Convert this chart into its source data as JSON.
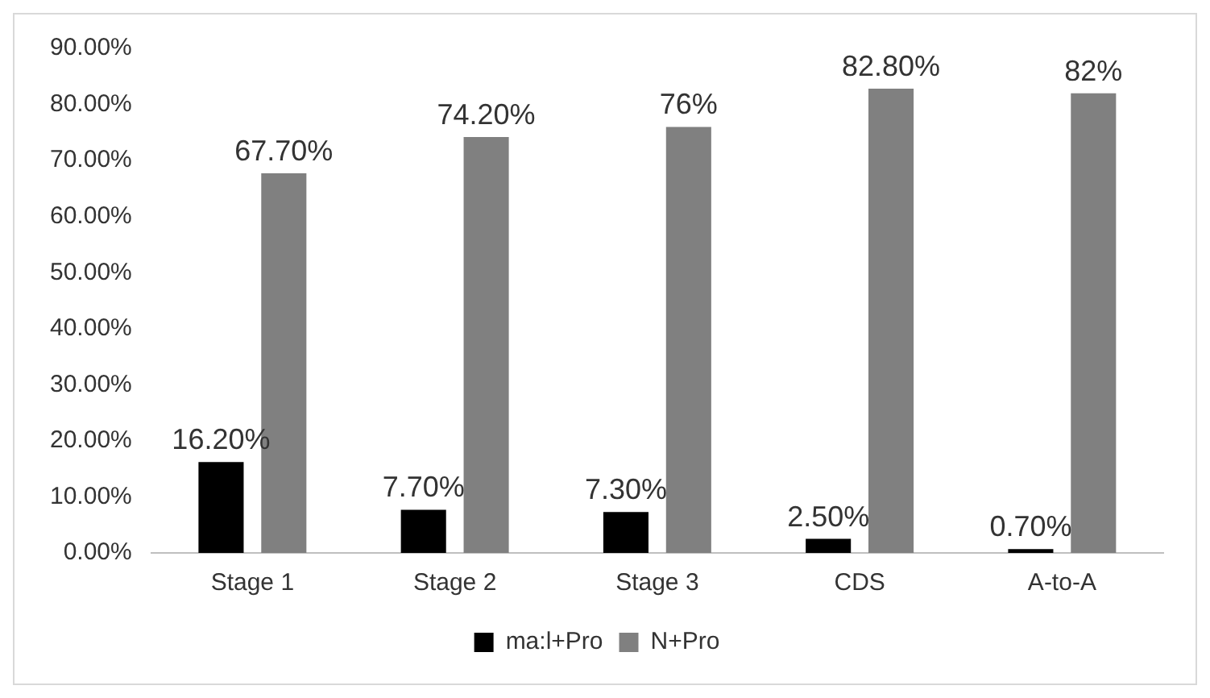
{
  "chart_data": {
    "type": "bar",
    "categories": [
      "Stage 1",
      "Stage 2",
      "Stage 3",
      "CDS",
      "A-to-A"
    ],
    "series": [
      {
        "name": "ma:l+Pro",
        "color": "#000000",
        "values": [
          16.2,
          7.7,
          7.3,
          2.5,
          0.7
        ],
        "value_labels": [
          "16.20%",
          "7.70%",
          "7.30%",
          "2.50%",
          "0.70%"
        ]
      },
      {
        "name": "N+Pro",
        "color": "#808080",
        "values": [
          67.7,
          74.2,
          76,
          82.8,
          82
        ],
        "value_labels": [
          "67.70%",
          "74.20%",
          "76%",
          "82.80%",
          "82%"
        ]
      }
    ],
    "ylim": [
      0,
      90
    ],
    "yticks": [
      {
        "value": 0,
        "label": "0.00%"
      },
      {
        "value": 10,
        "label": "10.00%"
      },
      {
        "value": 20,
        "label": "20.00%"
      },
      {
        "value": 30,
        "label": "30.00%"
      },
      {
        "value": 40,
        "label": "40.00%"
      },
      {
        "value": 50,
        "label": "50.00%"
      },
      {
        "value": 60,
        "label": "60.00%"
      },
      {
        "value": 70,
        "label": "70.00%"
      },
      {
        "value": 80,
        "label": "80.00%"
      },
      {
        "value": 90,
        "label": "90.00%"
      }
    ],
    "grid": false,
    "legend": "bottom"
  }
}
